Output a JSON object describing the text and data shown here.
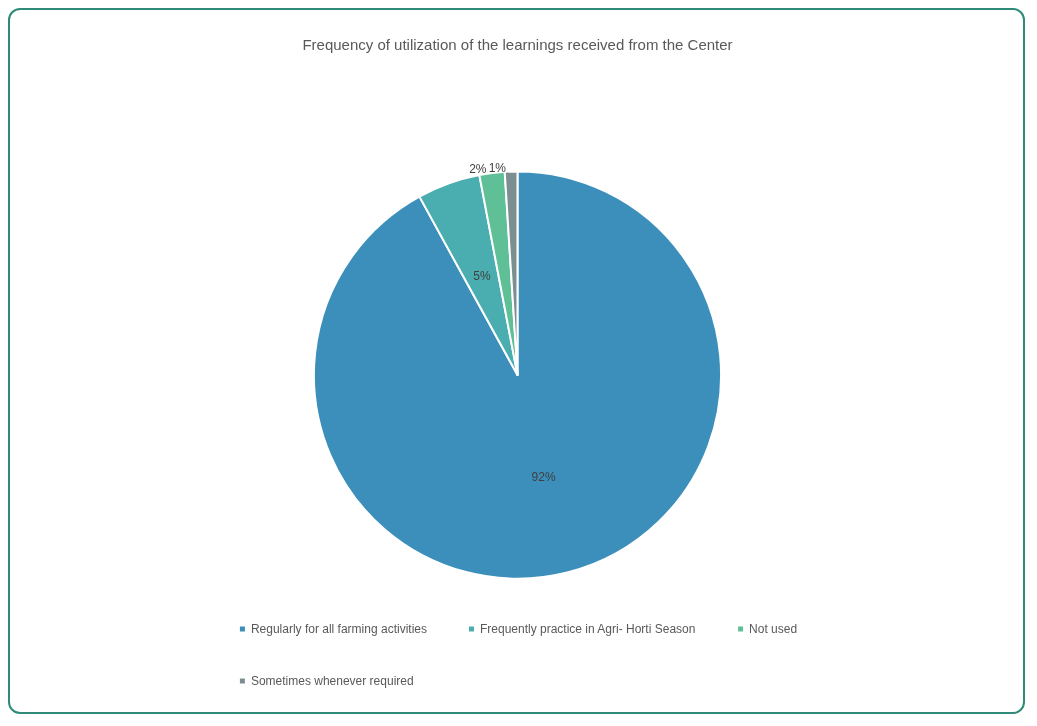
{
  "chart_data": {
    "type": "pie",
    "title": "Frequency of utilization of the learnings received from the Center",
    "categories": [
      "Regularly for all farming activities",
      "Frequently practice in Agri- Horti Season",
      "Not used",
      "Sometimes whenever required"
    ],
    "values": [
      92,
      5,
      2,
      1
    ],
    "colors": [
      "#3b8fba",
      "#4aaeb0",
      "#5fbf96",
      "#7d8e92"
    ],
    "value_labels": [
      "92%",
      "5%",
      "2%",
      "1%"
    ],
    "legend": "bottom"
  }
}
